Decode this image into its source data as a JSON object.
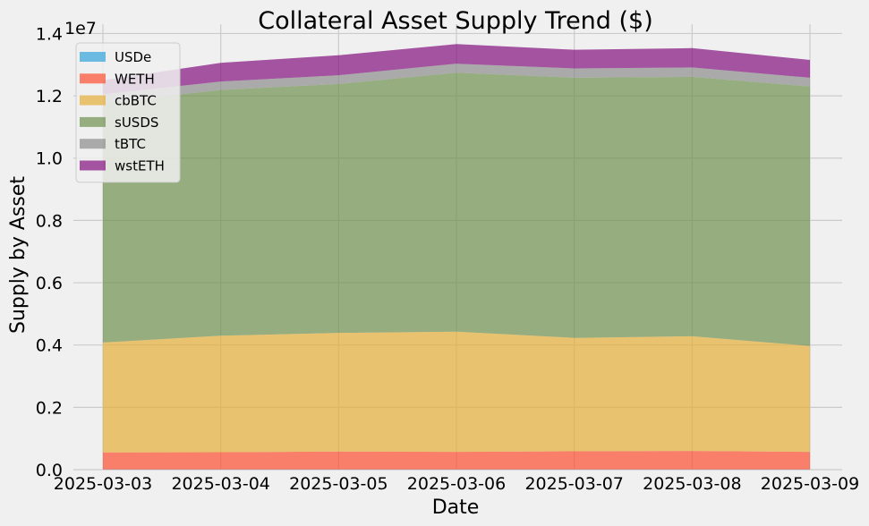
{
  "chart_data": {
    "type": "area",
    "title": "Collateral Asset Supply Trend ($)",
    "xlabel": "Date",
    "ylabel": "Supply by Asset",
    "y_offset_label": "1e7",
    "categories": [
      "2025-03-03",
      "2025-03-04",
      "2025-03-05",
      "2025-03-06",
      "2025-03-07",
      "2025-03-08",
      "2025-03-09"
    ],
    "ylim": [
      0,
      14300000.0
    ],
    "yticks": [
      0,
      2000000,
      4000000,
      6000000,
      8000000,
      10000000,
      12000000,
      14000000
    ],
    "ytick_labels": [
      "0.0",
      "0.2",
      "0.4",
      "0.6",
      "0.8",
      "1.0",
      "1.2",
      "1.4"
    ],
    "stacked": true,
    "grid": true,
    "legend_position": "upper-left",
    "series": [
      {
        "name": "USDe",
        "color": "#30a2da",
        "values": [
          10000,
          10000,
          10000,
          10000,
          10000,
          10000,
          10000
        ]
      },
      {
        "name": "WETH",
        "color": "#fc4f30",
        "values": [
          540000,
          550000,
          570000,
          560000,
          580000,
          590000,
          560000
        ]
      },
      {
        "name": "cbBTC",
        "color": "#e5ae38",
        "values": [
          3530000,
          3740000,
          3810000,
          3860000,
          3640000,
          3680000,
          3400000
        ]
      },
      {
        "name": "sUSDS",
        "color": "#6d904f",
        "values": [
          7700000,
          7890000,
          7990000,
          8310000,
          8350000,
          8330000,
          8330000
        ]
      },
      {
        "name": "tBTC",
        "color": "#8b8b8b",
        "values": [
          270000,
          270000,
          280000,
          290000,
          300000,
          300000,
          280000
        ]
      },
      {
        "name": "wstETH",
        "color": "#810f7c",
        "values": [
          450000,
          600000,
          640000,
          630000,
          600000,
          620000,
          570000
        ]
      }
    ]
  }
}
